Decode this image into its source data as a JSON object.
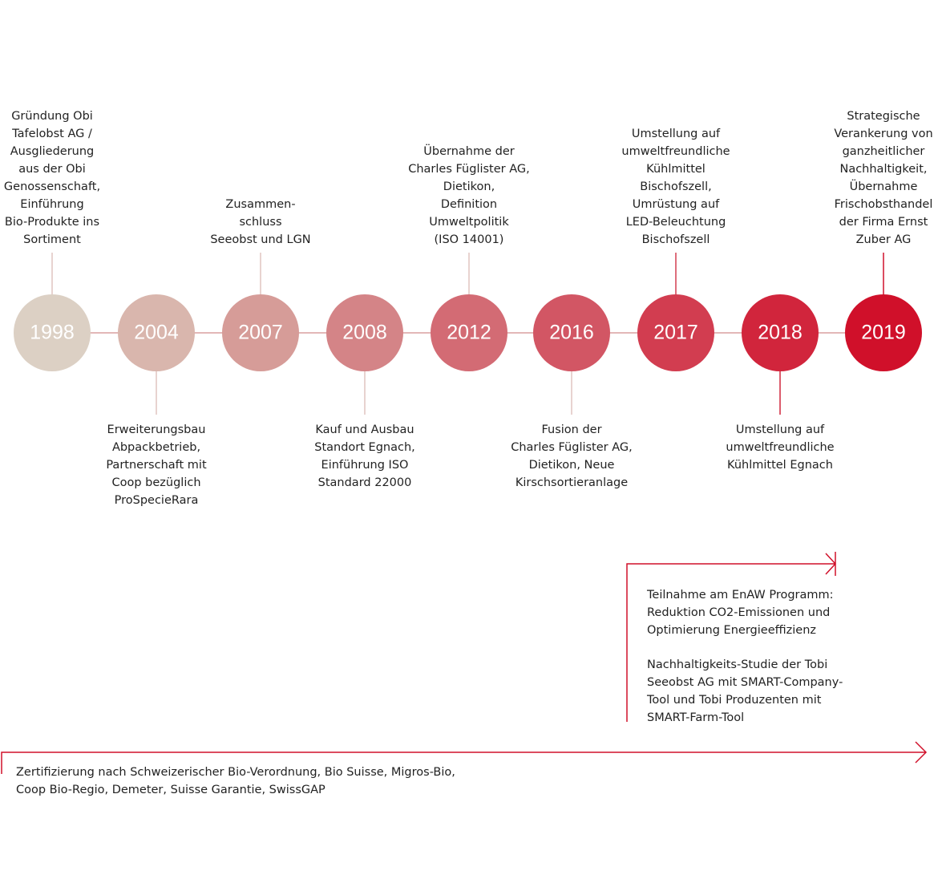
{
  "milestones": [
    {
      "year": "1998",
      "lines": [
        "Gründung Obi",
        "Tafelobst AG /",
        "Ausgliederung",
        "aus der Obi",
        "Genossenschaft,",
        "Einführung",
        "Bio-Produkte ins",
        "Sortiment"
      ]
    },
    {
      "year": "2004",
      "lines": [
        "Erweiterungsbau",
        "Abpackbetrieb,",
        "Partnerschaft mit",
        "Coop bezüglich",
        "ProSpecieRara"
      ]
    },
    {
      "year": "2007",
      "lines": [
        "Zusammen-",
        "schluss",
        "Seeobst und LGN"
      ]
    },
    {
      "year": "2008",
      "lines": [
        "Kauf und Ausbau",
        "Standort Egnach,",
        "Einführung ISO",
        "Standard 22000"
      ]
    },
    {
      "year": "2012",
      "lines": [
        "Übernahme der",
        "Charles Füglister AG,",
        "Dietikon,",
        "Definition",
        "Umweltpolitik",
        "(ISO 14001)"
      ]
    },
    {
      "year": "2016",
      "lines": [
        "Fusion der",
        "Charles Füglister AG,",
        "Dietikon, Neue",
        "Kirschsortieranlage"
      ]
    },
    {
      "year": "2017",
      "lines": [
        "Umstellung auf",
        "umweltfreundliche",
        "Kühlmittel",
        "Bischofszell,",
        "Umrüstung auf",
        "LED-Beleuchtung",
        "Bischofszell"
      ]
    },
    {
      "year": "2018",
      "lines": [
        "Umstellung auf",
        "umweltfreundliche",
        "Kühlmittel Egnach"
      ]
    },
    {
      "year": "2019",
      "lines": [
        "Strategische",
        "Verankerung von",
        "ganzheitlicher",
        "Nachhaltigkeit,",
        "Übernahme",
        "Frischobsthandel",
        "der Firma Ernst",
        "Zuber AG"
      ]
    }
  ],
  "programs": {
    "lines": [
      "Teilnahme am EnAW Programm:",
      "Reduktion CO2-Emissionen und",
      "Optimierung Energieeffizienz"
    ],
    "study": [
      "Nachhaltigkeits-Studie der Tobi",
      "Seeobst AG mit SMART-Company-",
      "Tool und Tobi Produzenten mit",
      "SMART-Farm-Tool"
    ]
  },
  "certification": {
    "lines": [
      "Zertifizierung nach Schweizerischer Bio-Verordnung, Bio Suisse, Migros-Bio,",
      "Coop Bio-Regio, Demeter, Suisse Garantie, SwissGAP"
    ]
  }
}
